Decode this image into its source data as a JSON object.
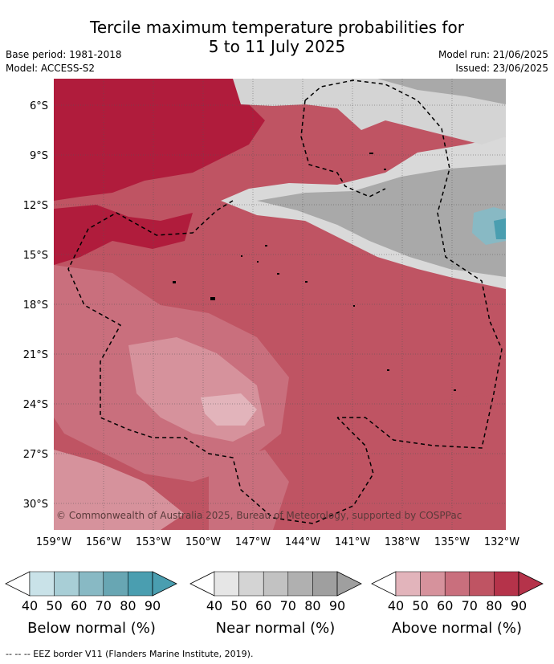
{
  "title_line1": "Tercile maximum temperature probabilities for",
  "title_line2": "5 to 11 July 2025",
  "base_period": "Base period: 1981-2018",
  "model": "Model: ACCESS-S2",
  "model_run": "Model run: 21/06/2025",
  "issued": "Issued: 23/06/2025",
  "copyright": "© Commonwealth of Australia 2025, Bureau of Meteorology, supported by COSPPac",
  "footer": "-- -- -- EEZ border V11 (Flanders Marine Institute, 2019).",
  "lat_labels": [
    "6°S",
    "9°S",
    "12°S",
    "15°S",
    "18°S",
    "21°S",
    "24°S",
    "27°S",
    "30°S"
  ],
  "lon_labels": [
    "159°W",
    "156°W",
    "153°W",
    "150°W",
    "147°W",
    "144°W",
    "141°W",
    "138°W",
    "135°W",
    "132°W"
  ],
  "legends": [
    {
      "title": "Below normal (%)",
      "ticks": [
        "40",
        "50",
        "60",
        "70",
        "80",
        "90"
      ],
      "colors": [
        "#c9e2e8",
        "#a8ced6",
        "#88b9c4",
        "#68a6b3",
        "#4a9eb0"
      ]
    },
    {
      "title": "Near normal (%)",
      "ticks": [
        "40",
        "50",
        "60",
        "70",
        "80",
        "90"
      ],
      "colors": [
        "#e6e6e6",
        "#d4d4d4",
        "#c2c2c2",
        "#b0b0b0",
        "#9f9f9f"
      ]
    },
    {
      "title": "Above normal (%)",
      "ticks": [
        "40",
        "50",
        "60",
        "70",
        "80",
        "90"
      ],
      "colors": [
        "#e2b4bb",
        "#d6929c",
        "#c96f7d",
        "#bf5463",
        "#b5334a"
      ]
    }
  ],
  "colors": {
    "above_90": "#b01c3c",
    "above_80": "#b5334a",
    "above_70": "#bf5463",
    "above_60": "#c96f7d",
    "above_50": "#d6929c",
    "near_50": "#d4d4d4",
    "near_60": "#c2c2c2",
    "near_70": "#a9a9a9",
    "below_60": "#88b9c4",
    "below_80": "#4a9eb0"
  }
}
